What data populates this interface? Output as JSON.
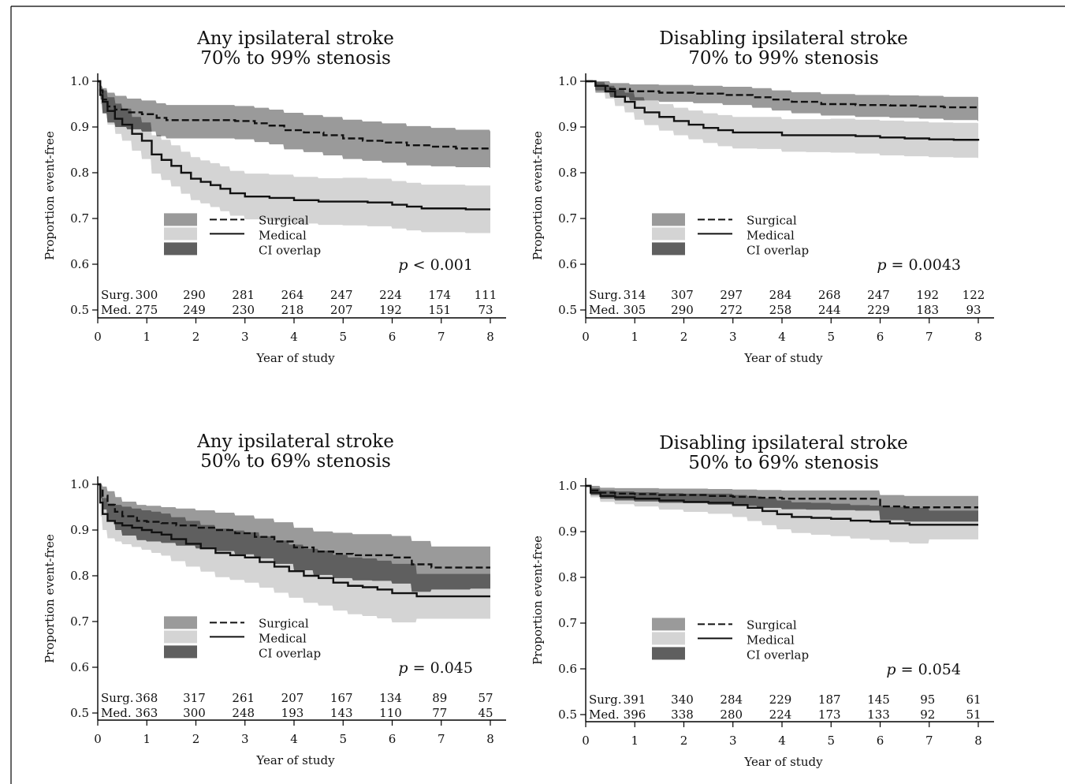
{
  "charts": {
    "tl": {
      "title": "Any ipsilateral stroke",
      "subtitle": "70% to 99% stenosis",
      "ylabel": "Proportion event-free",
      "xlabel": "Year of study",
      "p_italic": "p",
      "p_rest": " < 0.001"
    },
    "tr": {
      "title": "Disabling ipsilateral stroke",
      "subtitle": "70% to 99% stenosis",
      "ylabel": "Proportion event-free",
      "xlabel": "Year of study",
      "p_italic": "p",
      "p_rest": " = 0.0043"
    },
    "bl": {
      "title": "Any ipsilateral stroke",
      "subtitle": "50% to 69% stenosis",
      "ylabel": "Proportion event-free",
      "xlabel": "Year of study",
      "p_italic": "p",
      "p_rest": " = 0.045"
    },
    "br": {
      "title": "Disabling ipsilateral stroke",
      "subtitle": "50% to 69% stenosis",
      "ylabel": "Proportion event-free",
      "xlabel": "Year of study",
      "p_italic": "p",
      "p_rest": " = 0.054"
    }
  },
  "legend": {
    "surgical": "Surgical",
    "medical": "Medical",
    "overlap": "CI overlap"
  },
  "chart_data": [
    {
      "type": "line",
      "title": "Any ipsilateral stroke\n70% to 99% stenosis",
      "xlabel": "Year of study",
      "ylabel": "Proportion event-free",
      "xlim": [
        0,
        8
      ],
      "ylim": [
        0.5,
        1.0
      ],
      "x_ticks": [
        "0",
        "1",
        "2",
        "3",
        "4",
        "5",
        "6",
        "7",
        "8"
      ],
      "y_ticks": [
        "0.5",
        "0.6",
        "0.7",
        "0.8",
        "0.9",
        "1.0"
      ],
      "series": [
        {
          "name": "Surgical",
          "x": [
            0,
            0.05,
            0.1,
            0.2,
            0.35,
            0.6,
            0.9,
            1.2,
            1.4,
            2.0,
            2.8,
            3.2,
            3.5,
            3.8,
            4.2,
            4.6,
            5.0,
            5.4,
            5.8,
            6.3,
            6.8,
            7.3,
            8.0
          ],
          "y": [
            1.0,
            0.98,
            0.96,
            0.945,
            0.938,
            0.932,
            0.928,
            0.92,
            0.915,
            0.915,
            0.913,
            0.908,
            0.903,
            0.893,
            0.888,
            0.882,
            0.875,
            0.87,
            0.866,
            0.86,
            0.857,
            0.853,
            0.85
          ]
        },
        {
          "name": "Medical",
          "x": [
            0,
            0.05,
            0.1,
            0.2,
            0.35,
            0.5,
            0.7,
            0.9,
            1.1,
            1.3,
            1.5,
            1.7,
            1.9,
            2.1,
            2.3,
            2.5,
            2.7,
            3.0,
            3.5,
            4.0,
            4.5,
            5.0,
            5.5,
            6.0,
            6.3,
            6.6,
            7.0,
            7.5,
            8.0
          ],
          "y": [
            1.0,
            0.97,
            0.955,
            0.935,
            0.918,
            0.905,
            0.885,
            0.87,
            0.84,
            0.828,
            0.815,
            0.8,
            0.787,
            0.78,
            0.773,
            0.765,
            0.755,
            0.748,
            0.745,
            0.74,
            0.737,
            0.737,
            0.735,
            0.73,
            0.726,
            0.722,
            0.722,
            0.72,
            0.72
          ]
        }
      ],
      "ci_surgical": {
        "lower": [
          1.0,
          0.96,
          0.93,
          0.91,
          0.9,
          0.895,
          0.89,
          0.88,
          0.875,
          0.875,
          0.873,
          0.867,
          0.862,
          0.851,
          0.845,
          0.838,
          0.83,
          0.826,
          0.822,
          0.816,
          0.814,
          0.812,
          0.81
        ],
        "upper": [
          1.0,
          0.99,
          0.985,
          0.975,
          0.968,
          0.962,
          0.958,
          0.952,
          0.948,
          0.948,
          0.946,
          0.942,
          0.938,
          0.931,
          0.926,
          0.922,
          0.916,
          0.912,
          0.908,
          0.902,
          0.898,
          0.894,
          0.89
        ]
      },
      "ci_medical": {
        "lower": [
          1.0,
          0.95,
          0.93,
          0.905,
          0.885,
          0.87,
          0.848,
          0.83,
          0.798,
          0.784,
          0.77,
          0.754,
          0.74,
          0.733,
          0.725,
          0.716,
          0.706,
          0.698,
          0.694,
          0.689,
          0.686,
          0.685,
          0.683,
          0.678,
          0.674,
          0.67,
          0.67,
          0.668,
          0.668
        ],
        "upper": [
          1.0,
          0.99,
          0.98,
          0.965,
          0.951,
          0.94,
          0.922,
          0.91,
          0.882,
          0.872,
          0.86,
          0.846,
          0.834,
          0.827,
          0.821,
          0.814,
          0.804,
          0.798,
          0.796,
          0.791,
          0.788,
          0.789,
          0.787,
          0.782,
          0.778,
          0.774,
          0.774,
          0.772,
          0.772
        ]
      },
      "at_risk": {
        "x": [
          0,
          1,
          2,
          3,
          4,
          5,
          6,
          7,
          8
        ],
        "Surg.": [
          "300",
          "290",
          "281",
          "264",
          "247",
          "224",
          "174",
          "111"
        ],
        "Med.": [
          "275",
          "249",
          "230",
          "218",
          "207",
          "192",
          "151",
          "73"
        ]
      },
      "p_value": "p < 0.001"
    },
    {
      "type": "line",
      "title": "Disabling ipsilateral stroke\n70% to 99% stenosis",
      "xlabel": "Year of study",
      "ylabel": "Proportion event-free",
      "xlim": [
        0,
        8
      ],
      "ylim": [
        0.5,
        1.0
      ],
      "x_ticks": [
        "0",
        "1",
        "2",
        "3",
        "4",
        "5",
        "6",
        "7",
        "8"
      ],
      "y_ticks": [
        "0.5",
        "0.6",
        "0.7",
        "0.8",
        "0.9",
        "1.0"
      ],
      "series": [
        {
          "name": "Surgical",
          "x": [
            0,
            0.2,
            0.5,
            0.9,
            1.5,
            2.2,
            2.8,
            3.4,
            3.8,
            4.2,
            4.8,
            5.5,
            6.2,
            6.8,
            7.3,
            8.0
          ],
          "y": [
            1.0,
            0.99,
            0.983,
            0.978,
            0.975,
            0.973,
            0.97,
            0.965,
            0.96,
            0.955,
            0.95,
            0.948,
            0.947,
            0.945,
            0.943,
            0.94
          ]
        },
        {
          "name": "Medical",
          "x": [
            0,
            0.2,
            0.4,
            0.6,
            0.8,
            1.0,
            1.2,
            1.5,
            1.8,
            2.1,
            2.4,
            2.7,
            3.0,
            3.5,
            4.0,
            4.5,
            5.0,
            5.5,
            6.0,
            6.5,
            7.0,
            7.5,
            8.0
          ],
          "y": [
            1.0,
            0.99,
            0.978,
            0.966,
            0.955,
            0.942,
            0.932,
            0.922,
            0.913,
            0.905,
            0.898,
            0.893,
            0.888,
            0.888,
            0.882,
            0.882,
            0.882,
            0.88,
            0.877,
            0.875,
            0.873,
            0.872,
            0.87
          ]
        }
      ],
      "ci_surgical": {
        "lower": [
          1.0,
          0.975,
          0.965,
          0.958,
          0.955,
          0.952,
          0.948,
          0.942,
          0.936,
          0.93,
          0.925,
          0.922,
          0.92,
          0.918,
          0.915,
          0.912
        ],
        "upper": [
          1.0,
          1.0,
          0.996,
          0.993,
          0.992,
          0.99,
          0.988,
          0.985,
          0.98,
          0.976,
          0.972,
          0.97,
          0.969,
          0.968,
          0.966,
          0.965
        ]
      },
      "ci_medical": {
        "lower": [
          1.0,
          0.98,
          0.962,
          0.946,
          0.932,
          0.916,
          0.904,
          0.892,
          0.882,
          0.873,
          0.865,
          0.858,
          0.853,
          0.852,
          0.846,
          0.845,
          0.844,
          0.842,
          0.838,
          0.836,
          0.834,
          0.833,
          0.832
        ],
        "upper": [
          1.0,
          0.998,
          0.99,
          0.982,
          0.975,
          0.965,
          0.958,
          0.95,
          0.942,
          0.936,
          0.93,
          0.926,
          0.922,
          0.922,
          0.917,
          0.917,
          0.918,
          0.916,
          0.914,
          0.912,
          0.91,
          0.909,
          0.908
        ]
      },
      "at_risk": {
        "x": [
          0,
          1,
          2,
          3,
          4,
          5,
          6,
          7,
          8
        ],
        "Surg.": [
          "314",
          "307",
          "297",
          "284",
          "268",
          "247",
          "192",
          "122"
        ],
        "Med.": [
          "305",
          "290",
          "272",
          "258",
          "244",
          "229",
          "183",
          "93"
        ]
      },
      "p_value": "p = 0.0043"
    },
    {
      "type": "line",
      "title": "Any ipsilateral stroke\n50% to 69% stenosis",
      "xlabel": "Year of study",
      "ylabel": "Proportion event-free",
      "xlim": [
        0,
        8
      ],
      "ylim": [
        0.5,
        1.0
      ],
      "x_ticks": [
        "0",
        "1",
        "2",
        "3",
        "4",
        "5",
        "6",
        "7",
        "8"
      ],
      "y_ticks": [
        "0.5",
        "0.6",
        "0.7",
        "0.8",
        "0.9",
        "1.0"
      ],
      "series": [
        {
          "name": "Surgical",
          "x": [
            0,
            0.05,
            0.1,
            0.2,
            0.35,
            0.5,
            0.8,
            1.0,
            1.3,
            1.6,
            2.0,
            2.4,
            2.8,
            3.2,
            3.6,
            4.0,
            4.4,
            4.8,
            5.2,
            5.6,
            6.0,
            6.4,
            6.8,
            7.2,
            7.6,
            8.0
          ],
          "y": [
            1.0,
            0.99,
            0.975,
            0.955,
            0.94,
            0.93,
            0.92,
            0.918,
            0.915,
            0.91,
            0.905,
            0.9,
            0.893,
            0.885,
            0.875,
            0.862,
            0.853,
            0.848,
            0.845,
            0.845,
            0.84,
            0.825,
            0.818,
            0.818,
            0.818,
            0.818
          ]
        },
        {
          "name": "Medical",
          "x": [
            0,
            0.05,
            0.1,
            0.2,
            0.35,
            0.5,
            0.7,
            0.9,
            1.1,
            1.3,
            1.5,
            1.8,
            2.1,
            2.4,
            2.7,
            3.0,
            3.3,
            3.6,
            3.9,
            4.2,
            4.5,
            4.8,
            5.1,
            5.4,
            5.7,
            6.0,
            6.5,
            7.0,
            7.5,
            8.0
          ],
          "y": [
            1.0,
            0.96,
            0.935,
            0.92,
            0.915,
            0.91,
            0.905,
            0.9,
            0.895,
            0.89,
            0.88,
            0.87,
            0.86,
            0.85,
            0.845,
            0.84,
            0.83,
            0.82,
            0.81,
            0.8,
            0.795,
            0.785,
            0.778,
            0.775,
            0.77,
            0.762,
            0.755,
            0.755,
            0.755,
            0.755
          ]
        }
      ],
      "ci_surgical": {
        "lower": [
          1.0,
          0.97,
          0.945,
          0.92,
          0.9,
          0.888,
          0.878,
          0.875,
          0.872,
          0.866,
          0.86,
          0.854,
          0.847,
          0.838,
          0.826,
          0.812,
          0.802,
          0.795,
          0.79,
          0.789,
          0.783,
          0.765,
          0.77,
          0.77,
          0.772,
          0.772
        ],
        "upper": [
          1.0,
          1.0,
          0.995,
          0.985,
          0.972,
          0.962,
          0.955,
          0.953,
          0.95,
          0.947,
          0.943,
          0.938,
          0.932,
          0.925,
          0.917,
          0.905,
          0.897,
          0.894,
          0.891,
          0.891,
          0.887,
          0.876,
          0.864,
          0.864,
          0.864,
          0.864
        ]
      },
      "ci_medical": {
        "lower": [
          1.0,
          0.93,
          0.9,
          0.882,
          0.875,
          0.869,
          0.863,
          0.857,
          0.85,
          0.844,
          0.832,
          0.82,
          0.809,
          0.797,
          0.791,
          0.785,
          0.774,
          0.763,
          0.752,
          0.741,
          0.735,
          0.724,
          0.716,
          0.712,
          0.707,
          0.698,
          0.706,
          0.706,
          0.706,
          0.706
        ],
        "upper": [
          1.0,
          0.99,
          0.97,
          0.958,
          0.955,
          0.951,
          0.947,
          0.943,
          0.94,
          0.936,
          0.928,
          0.92,
          0.911,
          0.903,
          0.899,
          0.895,
          0.886,
          0.877,
          0.868,
          0.859,
          0.855,
          0.846,
          0.84,
          0.838,
          0.833,
          0.826,
          0.804,
          0.804,
          0.804,
          0.804
        ]
      },
      "at_risk": {
        "x": [
          0,
          1,
          2,
          3,
          4,
          5,
          6,
          7,
          8
        ],
        "Surg.": [
          "368",
          "317",
          "261",
          "207",
          "167",
          "134",
          "89",
          "57"
        ],
        "Med.": [
          "363",
          "300",
          "248",
          "193",
          "143",
          "110",
          "77",
          "45"
        ]
      },
      "p_value": "p = 0.045"
    },
    {
      "type": "line",
      "title": "Disabling ipsilateral stroke\n50% to 69% stenosis",
      "xlabel": "Year of study",
      "ylabel": "Proportion event-free",
      "xlim": [
        0,
        8
      ],
      "ylim": [
        0.5,
        1.0
      ],
      "x_ticks": [
        "0",
        "1",
        "2",
        "3",
        "4",
        "5",
        "6",
        "7",
        "8"
      ],
      "y_ticks": [
        "0.5",
        "0.6",
        "0.7",
        "0.8",
        "0.9",
        "1.0"
      ],
      "series": [
        {
          "name": "Surgical",
          "x": [
            0,
            0.1,
            0.3,
            0.6,
            1.0,
            1.5,
            2.0,
            2.5,
            3.0,
            3.5,
            4.0,
            4.5,
            5.0,
            5.5,
            6.0,
            6.5,
            7.0,
            7.5,
            8.0
          ],
          "y": [
            1.0,
            0.99,
            0.985,
            0.983,
            0.982,
            0.98,
            0.98,
            0.978,
            0.976,
            0.974,
            0.972,
            0.972,
            0.972,
            0.972,
            0.955,
            0.953,
            0.953,
            0.953,
            0.953
          ]
        },
        {
          "name": "Medical",
          "x": [
            0,
            0.1,
            0.3,
            0.6,
            1.0,
            1.5,
            2.0,
            2.5,
            3.0,
            3.3,
            3.6,
            3.9,
            4.2,
            4.6,
            5.0,
            5.4,
            5.8,
            6.2,
            6.6,
            7.0,
            7.5,
            8.0
          ],
          "y": [
            1.0,
            0.985,
            0.978,
            0.975,
            0.972,
            0.968,
            0.965,
            0.963,
            0.958,
            0.952,
            0.945,
            0.938,
            0.932,
            0.93,
            0.928,
            0.924,
            0.922,
            0.918,
            0.915,
            0.915,
            0.915,
            0.915
          ]
        }
      ],
      "ci_surgical": {
        "lower": [
          1.0,
          0.98,
          0.972,
          0.968,
          0.966,
          0.963,
          0.962,
          0.959,
          0.956,
          0.952,
          0.949,
          0.948,
          0.947,
          0.946,
          0.925,
          0.922,
          0.922,
          0.922,
          0.922
        ],
        "upper": [
          1.0,
          1.0,
          0.996,
          0.995,
          0.995,
          0.994,
          0.994,
          0.993,
          0.992,
          0.991,
          0.99,
          0.99,
          0.99,
          0.99,
          0.98,
          0.978,
          0.978,
          0.978,
          0.978
        ]
      },
      "ci_medical": {
        "lower": [
          1.0,
          0.975,
          0.965,
          0.96,
          0.955,
          0.948,
          0.943,
          0.939,
          0.932,
          0.923,
          0.914,
          0.905,
          0.897,
          0.893,
          0.89,
          0.885,
          0.882,
          0.877,
          0.874,
          0.883,
          0.883,
          0.883
        ],
        "upper": [
          1.0,
          0.995,
          0.99,
          0.988,
          0.986,
          0.984,
          0.983,
          0.983,
          0.98,
          0.977,
          0.973,
          0.968,
          0.964,
          0.963,
          0.961,
          0.958,
          0.957,
          0.954,
          0.952,
          0.946,
          0.946,
          0.946
        ]
      },
      "at_risk": {
        "x": [
          0,
          1,
          2,
          3,
          4,
          5,
          6,
          7,
          8
        ],
        "Surg.": [
          "391",
          "340",
          "284",
          "229",
          "187",
          "145",
          "95",
          "61"
        ],
        "Med.": [
          "396",
          "338",
          "280",
          "224",
          "173",
          "133",
          "92",
          "51"
        ]
      },
      "p_value": "p = 0.054"
    }
  ]
}
